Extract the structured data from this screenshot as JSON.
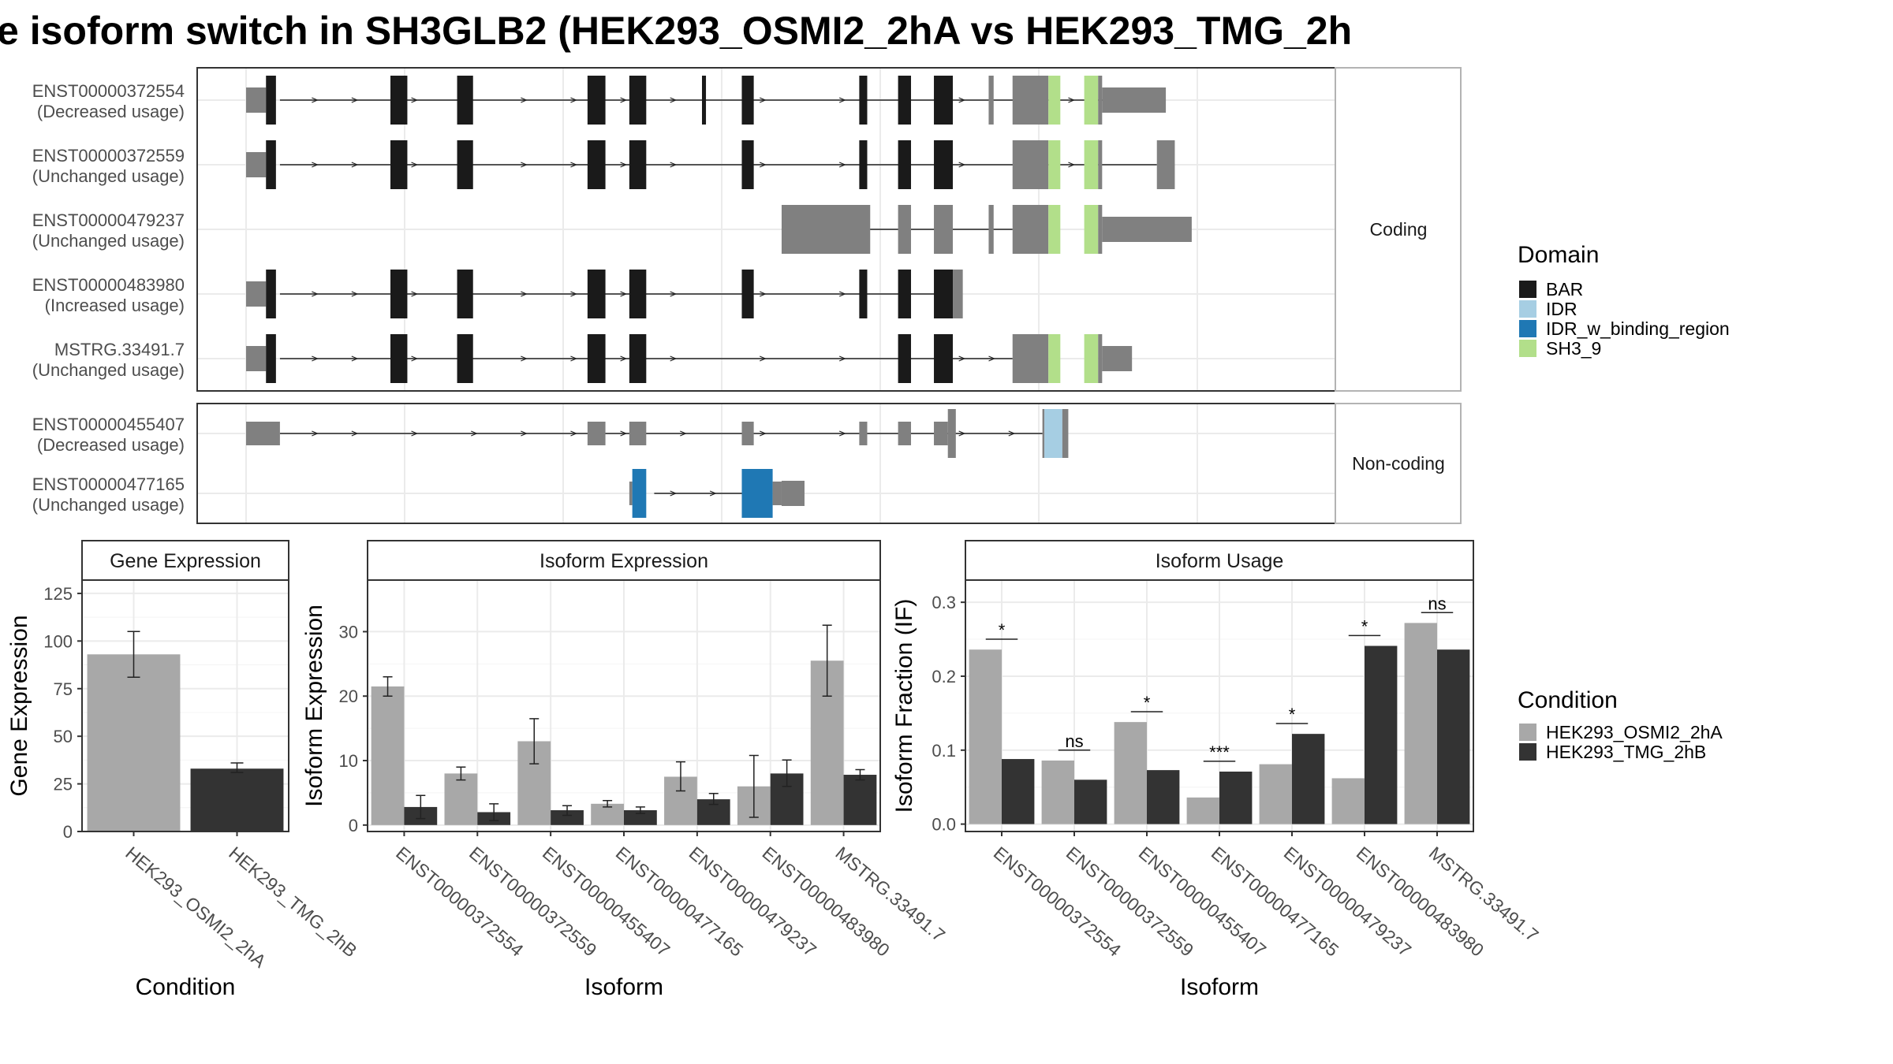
{
  "title": "e isoform switch in SH3GLB2 (HEK293_OSMI2_2hA vs HEK293_TMG_2h",
  "colors": {
    "BAR": "#1a1a1a",
    "IDR": "#a6cee3",
    "IDR_w_binding_region": "#1f78b4",
    "SH3_9": "#b2df8a",
    "noncoding": "#808080",
    "cond_a": "#a8a8a8",
    "cond_b": "#333333",
    "grid": "#ebebeb",
    "strip_bg": "#ffffff",
    "frame": "#333333"
  },
  "structure": {
    "coding_strip": "Coding",
    "noncoding_strip": "Non-coding",
    "coding": [
      {
        "id": "ENST00000372554",
        "usage": "(Decreased usage)",
        "introns": [
          [
            0.034,
            0.876
          ]
        ],
        "arrows": [
          0.07,
          0.11,
          0.17,
          0.28,
          0.33,
          0.38,
          0.43,
          0.52,
          0.6,
          0.66,
          0.72,
          0.78,
          0.83,
          0.875
        ],
        "exons": [
          [
            0.0,
            0.02,
            "utr"
          ],
          [
            0.02,
            0.03,
            "BAR"
          ],
          [
            0.145,
            0.162,
            "BAR"
          ],
          [
            0.212,
            0.228,
            "BAR"
          ],
          [
            0.343,
            0.361,
            "BAR"
          ],
          [
            0.385,
            0.402,
            "BAR"
          ],
          [
            0.458,
            0.462,
            "BAR"
          ],
          [
            0.498,
            0.51,
            "BAR"
          ],
          [
            0.616,
            0.624,
            "BAR"
          ],
          [
            0.655,
            0.668,
            "BAR"
          ],
          [
            0.691,
            0.71,
            "BAR"
          ],
          [
            0.746,
            0.751,
            "nc"
          ],
          [
            0.77,
            0.806,
            "nc"
          ],
          [
            0.806,
            0.818,
            "SH3_9"
          ],
          [
            0.842,
            0.856,
            "SH3_9"
          ],
          [
            0.856,
            0.86,
            "nc"
          ]
        ],
        "utr3": [
          0.86,
          0.924
        ]
      },
      {
        "id": "ENST00000372559",
        "usage": "(Unchanged usage)",
        "introns": [
          [
            0.034,
            0.915
          ]
        ],
        "arrows": [
          0.07,
          0.11,
          0.17,
          0.28,
          0.33,
          0.38,
          0.43,
          0.52,
          0.6,
          0.66,
          0.72,
          0.78,
          0.83
        ],
        "exons": [
          [
            0.0,
            0.02,
            "utr"
          ],
          [
            0.02,
            0.03,
            "BAR"
          ],
          [
            0.145,
            0.162,
            "BAR"
          ],
          [
            0.212,
            0.228,
            "BAR"
          ],
          [
            0.343,
            0.361,
            "BAR"
          ],
          [
            0.385,
            0.402,
            "BAR"
          ],
          [
            0.498,
            0.51,
            "BAR"
          ],
          [
            0.616,
            0.624,
            "BAR"
          ],
          [
            0.655,
            0.668,
            "BAR"
          ],
          [
            0.691,
            0.71,
            "BAR"
          ],
          [
            0.77,
            0.806,
            "nc"
          ],
          [
            0.806,
            0.818,
            "SH3_9"
          ],
          [
            0.842,
            0.856,
            "SH3_9"
          ],
          [
            0.856,
            0.86,
            "nc"
          ],
          [
            0.915,
            0.933,
            "nc"
          ]
        ],
        "utr3": null
      },
      {
        "id": "ENST00000479237",
        "usage": "(Unchanged usage)",
        "introns": [
          [
            0.538,
            0.77
          ]
        ],
        "arrows": [],
        "exons": [
          [
            0.538,
            0.627,
            "nc"
          ],
          [
            0.655,
            0.668,
            "nc"
          ],
          [
            0.691,
            0.71,
            "nc"
          ],
          [
            0.746,
            0.751,
            "nc"
          ],
          [
            0.77,
            0.806,
            "nc"
          ],
          [
            0.806,
            0.818,
            "SH3_9"
          ],
          [
            0.842,
            0.856,
            "SH3_9"
          ],
          [
            0.856,
            0.86,
            "nc"
          ]
        ],
        "utr3": [
          0.86,
          0.95
        ]
      },
      {
        "id": "ENST00000483980",
        "usage": "(Increased usage)",
        "introns": [
          [
            0.034,
            0.7
          ]
        ],
        "arrows": [
          0.07,
          0.11,
          0.17,
          0.28,
          0.33,
          0.38,
          0.43,
          0.52,
          0.6,
          0.66
        ],
        "exons": [
          [
            0.0,
            0.02,
            "utr"
          ],
          [
            0.02,
            0.03,
            "BAR"
          ],
          [
            0.145,
            0.162,
            "BAR"
          ],
          [
            0.212,
            0.228,
            "BAR"
          ],
          [
            0.343,
            0.361,
            "BAR"
          ],
          [
            0.385,
            0.402,
            "BAR"
          ],
          [
            0.498,
            0.51,
            "BAR"
          ],
          [
            0.616,
            0.624,
            "BAR"
          ],
          [
            0.655,
            0.668,
            "BAR"
          ],
          [
            0.691,
            0.71,
            "BAR"
          ],
          [
            0.71,
            0.72,
            "nc"
          ]
        ],
        "utr3": null
      },
      {
        "id": "MSTRG.33491.7",
        "usage": "(Unchanged usage)",
        "introns": [
          [
            0.034,
            0.77
          ]
        ],
        "arrows": [
          0.07,
          0.11,
          0.17,
          0.28,
          0.33,
          0.38,
          0.43,
          0.52,
          0.6,
          0.66,
          0.72,
          0.75
        ],
        "exons": [
          [
            0.0,
            0.02,
            "utr"
          ],
          [
            0.02,
            0.03,
            "BAR"
          ],
          [
            0.145,
            0.162,
            "BAR"
          ],
          [
            0.212,
            0.228,
            "BAR"
          ],
          [
            0.343,
            0.361,
            "BAR"
          ],
          [
            0.385,
            0.402,
            "BAR"
          ],
          [
            0.655,
            0.668,
            "BAR"
          ],
          [
            0.691,
            0.71,
            "BAR"
          ],
          [
            0.77,
            0.806,
            "nc"
          ],
          [
            0.806,
            0.818,
            "SH3_9"
          ],
          [
            0.842,
            0.856,
            "SH3_9"
          ],
          [
            0.856,
            0.86,
            "nc"
          ]
        ],
        "utr3": [
          0.86,
          0.89
        ]
      }
    ],
    "noncoding": [
      {
        "id": "ENST00000455407",
        "usage": "(Decreased usage)",
        "introns": [
          [
            0.034,
            0.8
          ]
        ],
        "arrows": [
          0.07,
          0.11,
          0.17,
          0.23,
          0.28,
          0.33,
          0.38,
          0.44,
          0.52,
          0.6,
          0.66,
          0.72,
          0.77
        ],
        "exons": [
          [
            0.0,
            0.034,
            "nc"
          ],
          [
            0.343,
            0.361,
            "nc"
          ],
          [
            0.385,
            0.402,
            "nc"
          ],
          [
            0.498,
            0.51,
            "nc"
          ],
          [
            0.616,
            0.624,
            "nc"
          ],
          [
            0.655,
            0.668,
            "nc"
          ],
          [
            0.691,
            0.705,
            "nc"
          ],
          [
            0.705,
            0.713,
            "nc"
          ],
          [
            0.8,
            0.802,
            "nc"
          ],
          [
            0.802,
            0.82,
            "IDR"
          ],
          [
            0.82,
            0.826,
            "nc"
          ]
        ],
        "tall": [
          [
            0.705,
            0.713
          ],
          [
            0.8,
            0.826
          ]
        ],
        "utr3": null
      },
      {
        "id": "ENST00000477165",
        "usage": "(Unchanged usage)",
        "introns": [
          [
            0.41,
            0.498
          ]
        ],
        "arrows": [
          0.43,
          0.47
        ],
        "exons": [
          [
            0.385,
            0.388,
            "nc"
          ],
          [
            0.388,
            0.402,
            "IDR_w_binding_region"
          ],
          [
            0.498,
            0.529,
            "IDR_w_binding_region"
          ],
          [
            0.529,
            0.538,
            "nc"
          ]
        ],
        "tall": [],
        "utr3": [
          0.538,
          0.561
        ]
      }
    ]
  },
  "legend": {
    "domain_title": "Domain",
    "domain_items": [
      {
        "label": "BAR",
        "key": "BAR"
      },
      {
        "label": "IDR",
        "key": "IDR"
      },
      {
        "label": "IDR_w_binding_region",
        "key": "IDR_w_binding_region"
      },
      {
        "label": "SH3_9",
        "key": "SH3_9"
      }
    ],
    "condition_title": "Condition",
    "condition_items": [
      {
        "label": "HEK293_OSMI2_2hA",
        "key": "cond_a"
      },
      {
        "label": "HEK293_TMG_2hB",
        "key": "cond_b"
      }
    ]
  },
  "chart_data": [
    {
      "type": "bar",
      "title": "Gene Expression",
      "xlabel": "Condition",
      "ylabel": "Gene Expression",
      "ylim": [
        0,
        132
      ],
      "yticks": [
        0,
        25,
        50,
        75,
        100,
        125
      ],
      "categories": [
        "HEK293_OSMI2_2hA",
        "HEK293_TMG_2hB"
      ],
      "values": [
        93,
        33
      ],
      "errors": [
        [
          81,
          105
        ],
        [
          31,
          36
        ]
      ],
      "grid": true
    },
    {
      "type": "bar",
      "title": "Isoform Expression",
      "xlabel": "Isoform",
      "ylabel": "Isoform Expression",
      "ylim": [
        -1,
        38
      ],
      "yticks": [
        0,
        10,
        20,
        30
      ],
      "categories": [
        "ENST00000372554",
        "ENST00000372559",
        "ENST00000455407",
        "ENST00000477165",
        "ENST00000479237",
        "ENST00000483980",
        "MSTRG.33491.7"
      ],
      "series": [
        {
          "name": "HEK293_OSMI2_2hA",
          "values": [
            21.5,
            8.0,
            13.0,
            3.3,
            7.5,
            6.0,
            25.5
          ],
          "errors": [
            [
              20,
              23
            ],
            [
              7,
              9
            ],
            [
              9.5,
              16.5
            ],
            [
              2.8,
              3.8
            ],
            [
              5.3,
              9.8
            ],
            [
              1.2,
              10.8
            ],
            [
              20,
              31
            ]
          ]
        },
        {
          "name": "HEK293_TMG_2hB",
          "values": [
            2.8,
            2.0,
            2.3,
            2.3,
            4.0,
            8.0,
            7.8
          ],
          "errors": [
            [
              1.0,
              4.6
            ],
            [
              0.7,
              3.3
            ],
            [
              1.5,
              3.0
            ],
            [
              1.8,
              2.8
            ],
            [
              3.2,
              4.9
            ],
            [
              6.0,
              10.1
            ],
            [
              7.0,
              8.6
            ]
          ]
        }
      ],
      "grid": true
    },
    {
      "type": "bar",
      "title": "Isoform Usage",
      "xlabel": "Isoform",
      "ylabel": "Isoform Fraction (IF)",
      "ylim": [
        -0.01,
        0.33
      ],
      "yticks": [
        0.0,
        0.1,
        0.2,
        0.3
      ],
      "ytick_labels": [
        "0.0",
        "0.1",
        "0.2",
        "0.3"
      ],
      "categories": [
        "ENST00000372554",
        "ENST00000372559",
        "ENST00000455407",
        "ENST00000477165",
        "ENST00000479237",
        "ENST00000483980",
        "MSTRG.33491.7"
      ],
      "series": [
        {
          "name": "HEK293_OSMI2_2hA",
          "values": [
            0.236,
            0.086,
            0.138,
            0.036,
            0.081,
            0.062,
            0.272
          ]
        },
        {
          "name": "HEK293_TMG_2hB",
          "values": [
            0.088,
            0.06,
            0.073,
            0.071,
            0.122,
            0.241,
            0.236
          ]
        }
      ],
      "significance": [
        {
          "label": "*",
          "y": 0.25
        },
        {
          "label": "ns",
          "y": 0.1
        },
        {
          "label": "*",
          "y": 0.152
        },
        {
          "label": "***",
          "y": 0.085
        },
        {
          "label": "*",
          "y": 0.136
        },
        {
          "label": "*",
          "y": 0.255
        },
        {
          "label": "ns",
          "y": 0.286
        }
      ],
      "grid": true
    }
  ]
}
